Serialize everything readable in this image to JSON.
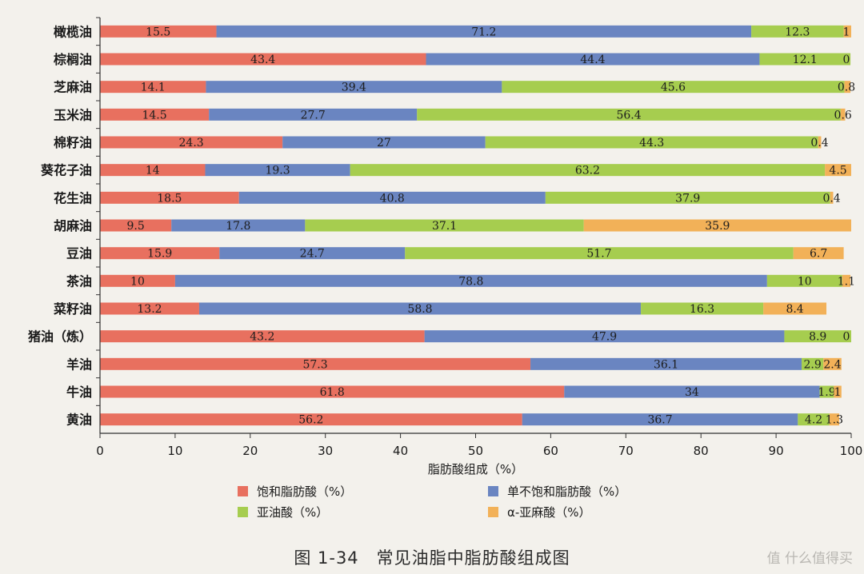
{
  "chart_data": {
    "type": "bar",
    "orientation": "horizontal",
    "stacked": true,
    "categories": [
      "橄榄油",
      "棕榈油",
      "芝麻油",
      "玉米油",
      "棉籽油",
      "葵花子油",
      "花生油",
      "胡麻油",
      "豆油",
      "茶油",
      "菜籽油",
      "猪油（炼）",
      "羊油",
      "牛油",
      "黄油"
    ],
    "series": [
      {
        "name": "饱和脂肪酸（%）",
        "color": "#e8705f",
        "values": [
          15.5,
          43.4,
          14.1,
          14.5,
          24.3,
          14,
          18.5,
          9.5,
          15.9,
          10,
          13.2,
          43.2,
          57.3,
          61.8,
          56.2
        ],
        "labels": [
          "15.5",
          "43.4",
          "14.1",
          "14.5",
          "24.3",
          "14",
          "18.5",
          "9.5",
          "15.9",
          "10",
          "13.2",
          "43.2",
          "57.3",
          "61.8",
          "56.2"
        ]
      },
      {
        "name": "单不饱和脂肪酸（%）",
        "color": "#6a85c1",
        "values": [
          71.2,
          44.4,
          39.4,
          27.7,
          27,
          19.3,
          40.8,
          17.8,
          24.7,
          78.8,
          58.8,
          47.9,
          36.1,
          34,
          36.7
        ],
        "labels": [
          "71.2",
          "44.4",
          "39.4",
          "27.7",
          "27",
          "19.3",
          "40.8",
          "17.8",
          "24.7",
          "78.8",
          "58.8",
          "47.9",
          "36.1",
          "34",
          "36.7"
        ]
      },
      {
        "name": "亚油酸（%）",
        "color": "#a6cd4f",
        "values": [
          12.3,
          12.1,
          45.6,
          56.4,
          44.3,
          63.2,
          37.9,
          37.1,
          51.7,
          10,
          16.3,
          8.9,
          2.9,
          1.9,
          4.2
        ],
        "labels": [
          "12.3",
          "12.1",
          "45.6",
          "56.4",
          "44.3",
          "63.2",
          "37.9",
          "37.1",
          "51.7",
          "10",
          "16.3",
          "8.9",
          "2.9",
          "1.9",
          "4.2"
        ]
      },
      {
        "name": "α-亚麻酸（%）",
        "color": "#f2b158",
        "values": [
          1,
          0,
          0.8,
          0.6,
          0.4,
          4.5,
          0.4,
          35.9,
          6.7,
          1.1,
          8.4,
          0,
          2.4,
          1,
          1.3
        ],
        "labels": [
          "1",
          "0",
          "0.8",
          "0.6",
          "0.4",
          "4.5",
          "0.4",
          "35.9",
          "6.7",
          "1.1",
          "8.4",
          "0",
          "2.4",
          "1",
          "1.3"
        ]
      }
    ],
    "xlabel": "脂肪酸组成（%）",
    "ylabel": "",
    "xlim": [
      0,
      100
    ],
    "xticks": [
      "0",
      "10",
      "20",
      "30",
      "40",
      "50",
      "60",
      "70",
      "80",
      "90",
      "100"
    ],
    "legend_placement": "bottom",
    "legend": [
      "饱和脂肪酸（%）",
      "单不饱和脂肪酸（%）",
      "亚油酸（%）",
      "α-亚麻酸（%）"
    ],
    "grid": false
  },
  "figure_caption": "图 1-34　常见油脂中脂肪酸组成图",
  "watermark": "值 什么值得买"
}
